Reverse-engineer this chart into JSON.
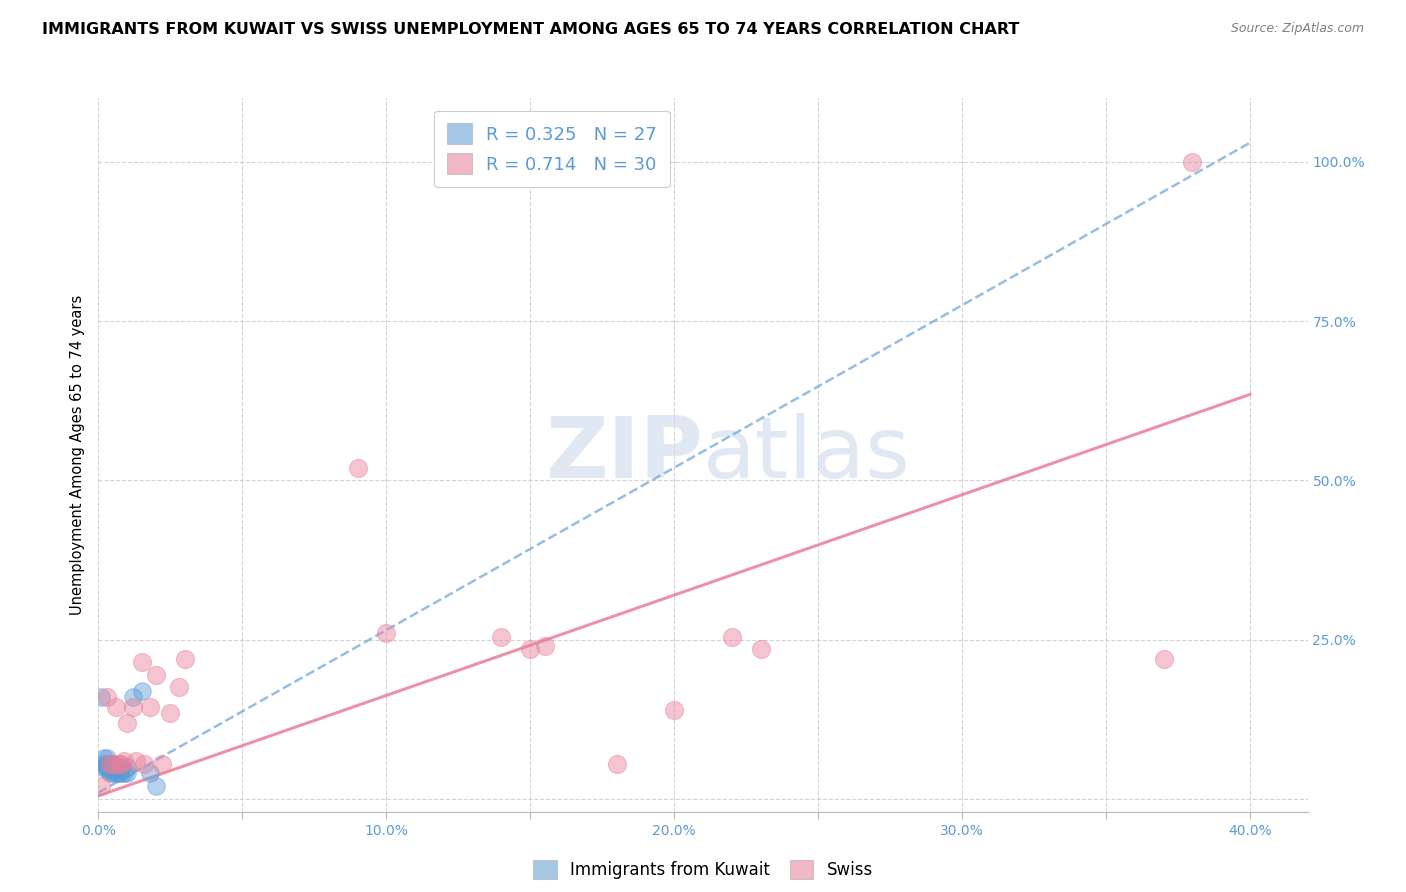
{
  "title": "IMMIGRANTS FROM KUWAIT VS SWISS UNEMPLOYMENT AMONG AGES 65 TO 74 YEARS CORRELATION CHART",
  "source": "Source: ZipAtlas.com",
  "ylabel": "Unemployment Among Ages 65 to 74 years",
  "xlim": [
    0.0,
    0.42
  ],
  "ylim": [
    -0.02,
    1.1
  ],
  "xticks": [
    0.0,
    0.05,
    0.1,
    0.15,
    0.2,
    0.25,
    0.3,
    0.35,
    0.4
  ],
  "yticks": [
    0.0,
    0.25,
    0.5,
    0.75,
    1.0
  ],
  "ytick_labels": [
    "",
    "25.0%",
    "50.0%",
    "75.0%",
    "100.0%"
  ],
  "xtick_labels": [
    "0.0%",
    "",
    "10.0%",
    "",
    "20.0%",
    "",
    "30.0%",
    "",
    "40.0%"
  ],
  "blue_R": 0.325,
  "blue_N": 27,
  "pink_R": 0.714,
  "pink_N": 30,
  "label_blue": "Immigrants from Kuwait",
  "label_pink": "Swiss",
  "accent_color": "#5b9bd5",
  "pink_color": "#e87f9a",
  "watermark_zip": "ZIP",
  "watermark_atlas": "atlas",
  "blue_scatter_x": [
    0.001,
    0.002,
    0.002,
    0.002,
    0.003,
    0.003,
    0.003,
    0.003,
    0.004,
    0.004,
    0.004,
    0.005,
    0.005,
    0.005,
    0.006,
    0.006,
    0.007,
    0.007,
    0.008,
    0.008,
    0.009,
    0.01,
    0.01,
    0.012,
    0.015,
    0.018,
    0.02
  ],
  "blue_scatter_y": [
    0.16,
    0.05,
    0.055,
    0.065,
    0.045,
    0.05,
    0.055,
    0.065,
    0.04,
    0.045,
    0.055,
    0.04,
    0.045,
    0.055,
    0.04,
    0.045,
    0.04,
    0.05,
    0.04,
    0.05,
    0.04,
    0.04,
    0.05,
    0.16,
    0.17,
    0.04,
    0.02
  ],
  "pink_scatter_x": [
    0.001,
    0.003,
    0.004,
    0.005,
    0.006,
    0.007,
    0.008,
    0.009,
    0.01,
    0.012,
    0.013,
    0.015,
    0.016,
    0.018,
    0.02,
    0.022,
    0.025,
    0.028,
    0.03,
    0.09,
    0.1,
    0.14,
    0.15,
    0.155,
    0.18,
    0.2,
    0.22,
    0.23,
    0.37,
    0.38
  ],
  "pink_scatter_y": [
    0.02,
    0.16,
    0.055,
    0.055,
    0.145,
    0.055,
    0.055,
    0.06,
    0.12,
    0.145,
    0.06,
    0.215,
    0.055,
    0.145,
    0.195,
    0.055,
    0.135,
    0.175,
    0.22,
    0.52,
    0.26,
    0.255,
    0.235,
    0.24,
    0.055,
    0.14,
    0.255,
    0.235,
    0.22,
    1.0
  ],
  "blue_line_x": [
    0.0,
    0.4
  ],
  "blue_line_y": [
    0.01,
    1.03
  ],
  "pink_line_x": [
    0.0,
    0.4
  ],
  "pink_line_y": [
    0.005,
    0.635
  ],
  "background_color": "#ffffff",
  "grid_color": "#d0d0d0",
  "title_fontsize": 11.5,
  "axis_label_fontsize": 10.5,
  "tick_fontsize": 10,
  "legend_fontsize": 13
}
